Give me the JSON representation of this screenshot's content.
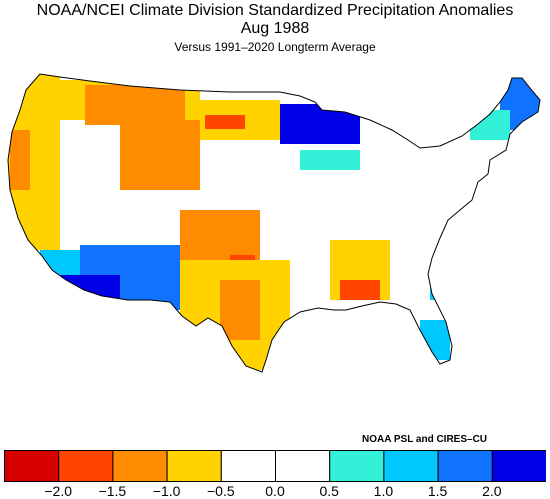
{
  "title": "NOAA/NCEI Climate Division Standardized Precipitation Anomalies",
  "period": "Aug 1988",
  "subtitle": "Versus 1991–2020 Longterm Average",
  "credit": "NOAA PSL and CIRES–CU",
  "legend": {
    "bins": [
      {
        "range": "< -2.0",
        "color": "#d60000"
      },
      {
        "range": "-2.0 to -1.5",
        "color": "#ff4500"
      },
      {
        "range": "-1.5 to -1.0",
        "color": "#ff8c00"
      },
      {
        "range": "-1.0 to -0.5",
        "color": "#ffd200"
      },
      {
        "range": "-0.5 to 0.0",
        "color": "#ffffff"
      },
      {
        "range": "0.0 to 0.5",
        "color": "#ffffff"
      },
      {
        "range": "0.5 to 1.0",
        "color": "#33f0d8"
      },
      {
        "range": "1.0 to 1.5",
        "color": "#00c8ff"
      },
      {
        "range": "1.5 to 2.0",
        "color": "#0f73ff"
      },
      {
        "range": "> 2.0",
        "color": "#0000e6"
      }
    ],
    "tick_labels": [
      "−2.0",
      "−1.5",
      "−1.0",
      "−0.5",
      "0.0",
      "0.5",
      "1.0",
      "1.5",
      "2.0"
    ]
  },
  "map": {
    "region": "Contiguous United States",
    "anomaly_areas": [
      {
        "area": "Pacific Northwest & northern California",
        "color": "#ffd200"
      },
      {
        "area": "Montana & Wyoming",
        "color": "#ff8c00"
      },
      {
        "area": "North Dakota",
        "color": "#ff4500"
      },
      {
        "area": "Minnesota & Wisconsin",
        "color": "#0000e6"
      },
      {
        "area": "Southern California",
        "color": "#00c8ff"
      },
      {
        "area": "Arizona & New Mexico",
        "color": "#0f73ff"
      },
      {
        "area": "Kansas & Oklahoma",
        "color": "#ff8c00"
      },
      {
        "area": "Texas",
        "color": "#ffd200"
      },
      {
        "area": "Mississippi & Alabama",
        "color": "#ff4500"
      },
      {
        "area": "Carolinas coast",
        "color": "#00c8ff"
      },
      {
        "area": "Maine",
        "color": "#0f73ff"
      },
      {
        "area": "Florida",
        "color": "#00c8ff"
      }
    ]
  }
}
